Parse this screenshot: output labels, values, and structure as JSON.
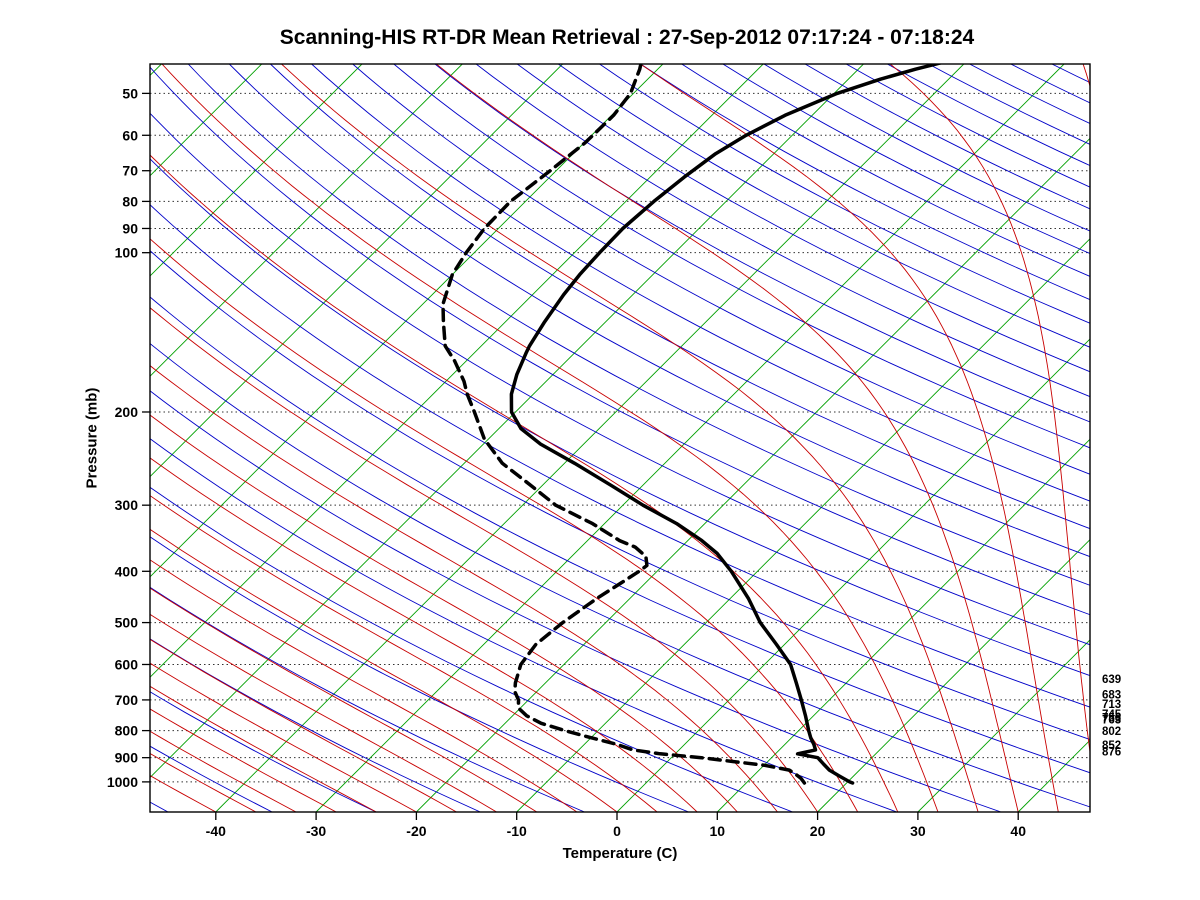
{
  "title": "Scanning-HIS RT-DR Mean Retrieval : 27-Sep-2012 07:17:24 - 07:18:24",
  "axes": {
    "x_label": "Temperature (C)",
    "y_label": "Pressure (mb)"
  },
  "chart_data": {
    "type": "line",
    "chart_kind": "skew-t log-p thermodynamic diagram",
    "title": "Scanning-HIS RT-DR Mean Retrieval : 27-Sep-2012 07:17:24 - 07:18:24",
    "xlabel": "Temperature (C)",
    "ylabel": "Pressure (mb)",
    "pressure_range_mb": [
      44,
      1140
    ],
    "temperature_ticks_c": [
      -40,
      -30,
      -20,
      -10,
      0,
      10,
      20,
      30,
      40
    ],
    "pressure_ticks_mb": [
      50,
      60,
      70,
      80,
      90,
      100,
      200,
      300,
      400,
      500,
      600,
      700,
      800,
      900,
      1000
    ],
    "grid": true,
    "legend_position": "none",
    "background_lines": {
      "isobar_gridlines": {
        "style": "dotted",
        "color": "#333333",
        "levels_mb": [
          50,
          60,
          70,
          80,
          90,
          100,
          200,
          300,
          400,
          500,
          600,
          700,
          800,
          900,
          1000
        ]
      },
      "isotherms": {
        "color": "#00A000",
        "start_c": -120,
        "end_c": 40,
        "step_c": 10
      },
      "dry_adiabats": {
        "color": "#0000C8",
        "theta_start_k": 220,
        "theta_end_k": 600,
        "step_k": 10
      },
      "moist_adiabats": {
        "color": "#C80000",
        "surface_temp_start_c": -40,
        "surface_temp_end_c": 52,
        "step_c": 4
      }
    },
    "right_level_labels_mb": [
      639,
      683,
      713,
      745,
      756,
      763,
      802,
      852,
      876
    ],
    "series": [
      {
        "name": "temperature",
        "style": "solid",
        "color": "#000000",
        "points_p_t": [
          [
            1005,
            20.6
          ],
          [
            1000,
            20.2
          ],
          [
            975,
            18.6
          ],
          [
            950,
            17.0
          ],
          [
            925,
            15.8
          ],
          [
            900,
            14.6
          ],
          [
            885,
            12.2
          ],
          [
            870,
            13.6
          ],
          [
            850,
            12.9
          ],
          [
            825,
            11.9
          ],
          [
            800,
            11.0
          ],
          [
            750,
            9.2
          ],
          [
            700,
            7.2
          ],
          [
            650,
            5.0
          ],
          [
            600,
            2.6
          ],
          [
            550,
            -0.8
          ],
          [
            500,
            -4.6
          ],
          [
            450,
            -8.2
          ],
          [
            400,
            -12.6
          ],
          [
            370,
            -15.8
          ],
          [
            350,
            -18.6
          ],
          [
            325,
            -22.8
          ],
          [
            300,
            -28.0
          ],
          [
            275,
            -33.2
          ],
          [
            250,
            -39.0
          ],
          [
            230,
            -44.3
          ],
          [
            215,
            -47.8
          ],
          [
            200,
            -50.4
          ],
          [
            185,
            -52.2
          ],
          [
            170,
            -53.6
          ],
          [
            155,
            -54.8
          ],
          [
            150,
            -55.2
          ],
          [
            135,
            -56.1
          ],
          [
            120,
            -56.9
          ],
          [
            110,
            -57.3
          ],
          [
            100,
            -57.5
          ],
          [
            90,
            -57.6
          ],
          [
            80,
            -57.2
          ],
          [
            72,
            -56.6
          ],
          [
            65,
            -55.8
          ],
          [
            60,
            -54.6
          ],
          [
            55,
            -52.7
          ],
          [
            50,
            -49.7
          ],
          [
            47,
            -46.8
          ],
          [
            45,
            -44.3
          ],
          [
            43.5,
            -42.0
          ]
        ]
      },
      {
        "name": "dew_point",
        "style": "dashed",
        "color": "#000000",
        "points_p_t": [
          [
            1005,
            15.8
          ],
          [
            1000,
            15.6
          ],
          [
            985,
            15.0
          ],
          [
            970,
            14.2
          ],
          [
            950,
            13.0
          ],
          [
            930,
            10.0
          ],
          [
            915,
            6.5
          ],
          [
            900,
            3.0
          ],
          [
            885,
            -1.5
          ],
          [
            870,
            -4.6
          ],
          [
            850,
            -6.7
          ],
          [
            825,
            -10.0
          ],
          [
            800,
            -13.3
          ],
          [
            775,
            -16.4
          ],
          [
            750,
            -18.6
          ],
          [
            725,
            -20.2
          ],
          [
            700,
            -21.0
          ],
          [
            675,
            -22.2
          ],
          [
            650,
            -23.0
          ],
          [
            600,
            -24.3
          ],
          [
            550,
            -24.8
          ],
          [
            500,
            -24.3
          ],
          [
            450,
            -23.3
          ],
          [
            420,
            -22.4
          ],
          [
            400,
            -21.8
          ],
          [
            390,
            -21.6
          ],
          [
            375,
            -22.6
          ],
          [
            360,
            -24.6
          ],
          [
            350,
            -26.8
          ],
          [
            325,
            -31.2
          ],
          [
            300,
            -36.7
          ],
          [
            275,
            -41.2
          ],
          [
            250,
            -46.2
          ],
          [
            225,
            -50.4
          ],
          [
            200,
            -54.1
          ],
          [
            185,
            -56.6
          ],
          [
            175,
            -58.2
          ],
          [
            160,
            -61.2
          ],
          [
            150,
            -63.6
          ],
          [
            135,
            -66.2
          ],
          [
            125,
            -68.0
          ],
          [
            110,
            -70.0
          ],
          [
            100,
            -70.8
          ],
          [
            90,
            -71.4
          ],
          [
            80,
            -71.5
          ],
          [
            70,
            -70.6
          ],
          [
            62,
            -69.9
          ],
          [
            55,
            -69.8
          ],
          [
            50,
            -70.3
          ],
          [
            45,
            -71.8
          ],
          [
            43.5,
            -72.4
          ]
        ]
      }
    ]
  }
}
